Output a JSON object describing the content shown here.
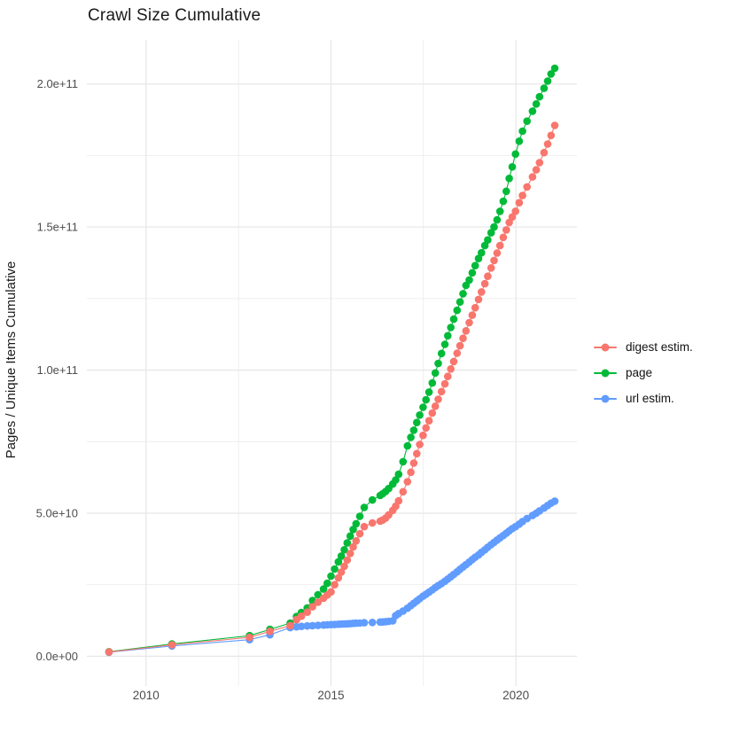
{
  "chart_data": {
    "type": "line",
    "title": "Crawl Size Cumulative",
    "xlabel": "",
    "ylabel": "Pages / Unique Items Cumulative",
    "grid": true,
    "legend_position": "right",
    "values_unit": "billions (1e9) of pages / unique items",
    "x_axis": {
      "domain": [
        2008.4,
        2021.65
      ],
      "ticks": [
        {
          "value": 2010,
          "label": "2010"
        },
        {
          "value": 2015,
          "label": "2015"
        },
        {
          "value": 2020,
          "label": "2020"
        }
      ],
      "minor_ticks": [
        2012.5,
        2017.5
      ]
    },
    "y_axis": {
      "domain": [
        -10.4,
        215.4
      ],
      "ticks": [
        {
          "value": 0,
          "label": "0.0e+00"
        },
        {
          "value": 50,
          "label": "5.0e+10"
        },
        {
          "value": 100,
          "label": "1.0e+11"
        },
        {
          "value": 150,
          "label": "1.5e+11"
        },
        {
          "value": 200,
          "label": "2.0e+11"
        }
      ],
      "minor_ticks": [
        25,
        75,
        125,
        175
      ]
    },
    "colors": {
      "grid": "#e8e8e8",
      "tick_text": "#4d4d4d",
      "title_text": "#1a1a1a"
    },
    "x": [
      2009.0,
      2010.7,
      2012.8,
      2013.35,
      2013.9,
      2014.07,
      2014.2,
      2014.36,
      2014.5,
      2014.65,
      2014.8,
      2014.9,
      2015.0,
      2015.1,
      2015.2,
      2015.28,
      2015.36,
      2015.44,
      2015.52,
      2015.6,
      2015.68,
      2015.78,
      2015.9,
      2016.12,
      2016.33,
      2016.4,
      2016.48,
      2016.56,
      2016.67,
      2016.75,
      2016.83,
      2016.95,
      2017.07,
      2017.16,
      2017.24,
      2017.32,
      2017.4,
      2017.49,
      2017.57,
      2017.65,
      2017.74,
      2017.82,
      2017.9,
      2017.99,
      2018.08,
      2018.16,
      2018.24,
      2018.32,
      2018.41,
      2018.49,
      2018.57,
      2018.65,
      2018.74,
      2018.82,
      2018.9,
      2018.99,
      2019.07,
      2019.16,
      2019.24,
      2019.33,
      2019.41,
      2019.49,
      2019.57,
      2019.66,
      2019.74,
      2019.82,
      2019.9,
      2019.99,
      2020.09,
      2020.18,
      2020.3,
      2020.45,
      2020.55,
      2020.64,
      2020.76,
      2020.86,
      2020.95,
      2021.05
    ],
    "series": [
      {
        "name": "digest estim.",
        "color": "#F8766D",
        "values": [
          1.5,
          4.0,
          6.6,
          8.7,
          10.7,
          12.8,
          14.0,
          15.4,
          17.3,
          18.9,
          20.3,
          21.4,
          22.5,
          25.0,
          27.4,
          29.4,
          31.4,
          33.6,
          35.9,
          38.2,
          40.3,
          42.8,
          45.3,
          46.6,
          47.2,
          47.6,
          48.3,
          49.4,
          51.0,
          52.4,
          54.3,
          57.5,
          61.0,
          64.3,
          67.5,
          70.8,
          74.0,
          77.2,
          79.8,
          82.3,
          85.0,
          87.4,
          89.8,
          92.5,
          95.2,
          97.8,
          100.4,
          103.0,
          105.9,
          108.5,
          111.1,
          113.7,
          116.6,
          119.2,
          121.8,
          124.7,
          127.3,
          130.2,
          132.8,
          135.7,
          138.3,
          140.9,
          143.5,
          146.4,
          149.0,
          151.6,
          153.5,
          155.5,
          158.5,
          161.0,
          164.0,
          167.5,
          170.0,
          172.5,
          176.0,
          179.0,
          182.0,
          185.5
        ]
      },
      {
        "name": "page",
        "color": "#00BA38",
        "values": [
          1.6,
          4.3,
          7.2,
          9.4,
          11.6,
          13.9,
          15.3,
          16.9,
          19.5,
          21.5,
          23.5,
          25.5,
          28.0,
          30.5,
          33.0,
          35.0,
          37.2,
          39.6,
          42.0,
          44.3,
          46.3,
          48.9,
          52.0,
          54.6,
          56.2,
          56.8,
          57.6,
          58.6,
          60.2,
          61.6,
          63.6,
          68.0,
          73.5,
          76.5,
          79.0,
          81.7,
          84.3,
          87.0,
          89.6,
          92.3,
          95.5,
          99.0,
          102.3,
          105.8,
          109.0,
          112.0,
          114.9,
          117.8,
          120.9,
          123.8,
          126.7,
          129.6,
          131.5,
          134.0,
          136.5,
          139.0,
          141.0,
          143.5,
          145.5,
          148.0,
          150.0,
          152.5,
          155.5,
          159.0,
          162.5,
          167.0,
          171.0,
          175.5,
          180.0,
          183.5,
          187.0,
          190.5,
          193.0,
          195.5,
          198.5,
          201.0,
          203.5,
          205.5
        ]
      },
      {
        "name": "url estim.",
        "color": "#619CFF",
        "values": [
          1.4,
          3.6,
          5.8,
          7.5,
          10.0,
          10.3,
          10.45,
          10.6,
          10.7,
          10.8,
          10.9,
          11.0,
          11.05,
          11.1,
          11.2,
          11.25,
          11.3,
          11.35,
          11.4,
          11.5,
          11.55,
          11.6,
          11.7,
          11.8,
          11.95,
          12.0,
          12.1,
          12.2,
          12.4,
          14.2,
          14.9,
          15.8,
          16.8,
          17.7,
          18.5,
          19.3,
          20.1,
          21.0,
          21.7,
          22.4,
          23.2,
          24.0,
          24.7,
          25.4,
          26.2,
          27.0,
          27.8,
          28.6,
          29.5,
          30.4,
          31.2,
          32.0,
          32.9,
          33.8,
          34.6,
          35.4,
          36.3,
          37.2,
          38.1,
          39.0,
          39.8,
          40.6,
          41.4,
          42.2,
          43.0,
          43.8,
          44.6,
          45.3,
          46.2,
          47.1,
          48.1,
          49.2,
          50.0,
          50.8,
          51.8,
          52.7,
          53.5,
          54.2
        ]
      }
    ]
  }
}
